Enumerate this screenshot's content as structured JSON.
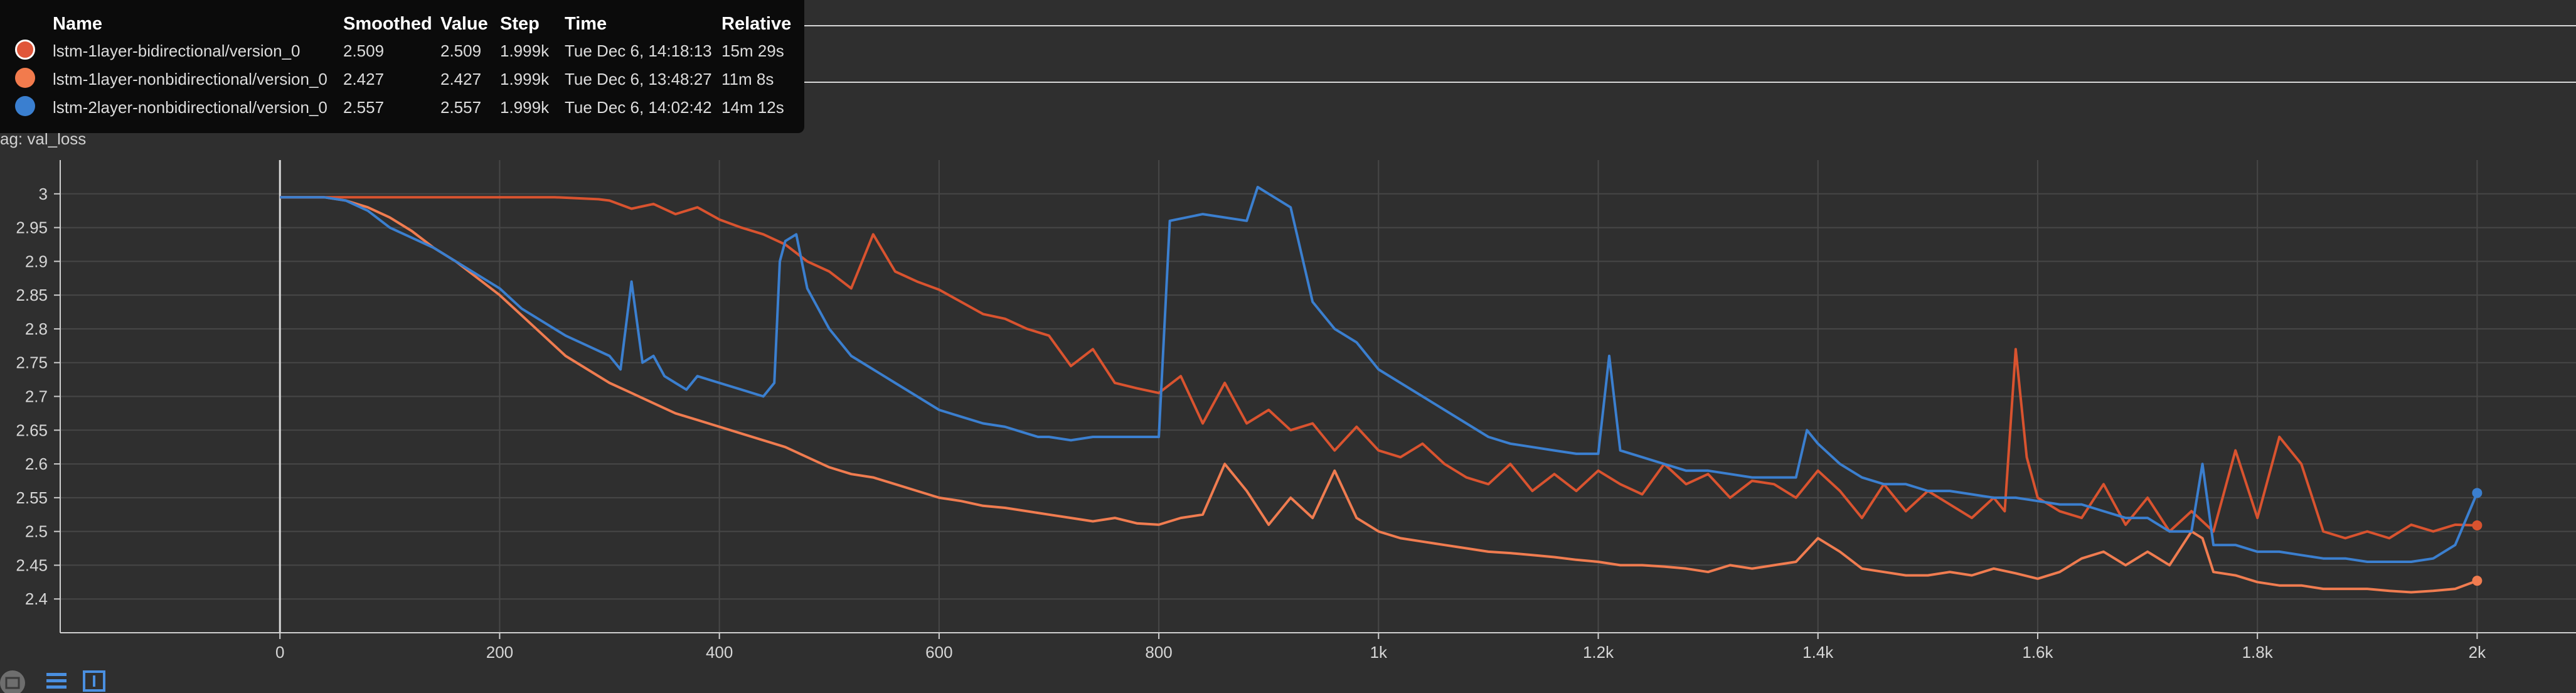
{
  "tag_label": "ag: val_loss",
  "partial_label": "val_loss",
  "tooltip": {
    "headers": {
      "name": "Name",
      "smoothed": "Smoothed",
      "value": "Value",
      "step": "Step",
      "time": "Time",
      "relative": "Relative"
    },
    "rows": [
      {
        "name": "lstm-1layer-bidirectional/version_0",
        "smoothed": "2.509",
        "value": "2.509",
        "step": "1.999k",
        "time": "Tue Dec 6, 14:18:13",
        "relative": "15m 29s",
        "color": "#e0563a",
        "selected": true
      },
      {
        "name": "lstm-1layer-nonbidirectional/version_0",
        "smoothed": "2.427",
        "value": "2.427",
        "step": "1.999k",
        "time": "Tue Dec 6, 13:48:27",
        "relative": "11m 8s",
        "color": "#f27b4d",
        "selected": false
      },
      {
        "name": "lstm-2layer-nonbidirectional/version_0",
        "smoothed": "2.557",
        "value": "2.557",
        "step": "1.999k",
        "time": "Tue Dec 6, 14:02:42",
        "relative": "14m 12s",
        "color": "#3a7fd0",
        "selected": false
      }
    ]
  },
  "chart_data": {
    "type": "line",
    "xlabel": "",
    "ylabel": "",
    "xlim": [
      -200,
      2090
    ],
    "ylim": [
      2.35,
      3.05
    ],
    "grid": true,
    "x_ticks": [
      0,
      200,
      400,
      600,
      800,
      1000,
      1200,
      1400,
      1600,
      1800,
      2000
    ],
    "x_tick_labels": [
      "0",
      "200",
      "400",
      "600",
      "800",
      "1k",
      "1.2k",
      "1.4k",
      "1.6k",
      "1.8k",
      "2k"
    ],
    "y_ticks": [
      2.4,
      2.45,
      2.5,
      2.55,
      2.6,
      2.65,
      2.7,
      2.75,
      2.8,
      2.85,
      2.9,
      2.95,
      3
    ],
    "y_tick_labels": [
      "2.4",
      "2.45",
      "2.5",
      "2.55",
      "2.6",
      "2.65",
      "2.7",
      "2.75",
      "2.8",
      "2.85",
      "2.9",
      "2.95",
      "3"
    ],
    "series": [
      {
        "name": "lstm-1layer-bidirectional/version_0",
        "color": "#d9532f",
        "x": [
          0,
          60,
          100,
          150,
          200,
          250,
          290,
          300,
          320,
          340,
          360,
          380,
          400,
          420,
          440,
          460,
          480,
          500,
          520,
          540,
          560,
          580,
          600,
          620,
          640,
          660,
          680,
          700,
          720,
          740,
          760,
          780,
          800,
          820,
          840,
          860,
          880,
          900,
          920,
          940,
          960,
          980,
          1000,
          1020,
          1040,
          1060,
          1080,
          1100,
          1120,
          1140,
          1160,
          1180,
          1200,
          1220,
          1240,
          1260,
          1280,
          1300,
          1320,
          1340,
          1360,
          1380,
          1400,
          1420,
          1440,
          1460,
          1480,
          1500,
          1520,
          1540,
          1560,
          1570,
          1580,
          1590,
          1600,
          1620,
          1640,
          1660,
          1680,
          1700,
          1720,
          1740,
          1760,
          1780,
          1800,
          1820,
          1840,
          1860,
          1880,
          1900,
          1920,
          1940,
          1960,
          1980,
          2000
        ],
        "y": [
          2.995,
          2.995,
          2.995,
          2.995,
          2.995,
          2.995,
          2.992,
          2.99,
          2.978,
          2.985,
          2.97,
          2.98,
          2.962,
          2.95,
          2.94,
          2.925,
          2.9,
          2.885,
          2.86,
          2.94,
          2.885,
          2.87,
          2.858,
          2.84,
          2.822,
          2.815,
          2.8,
          2.79,
          2.745,
          2.77,
          2.72,
          2.712,
          2.705,
          2.73,
          2.66,
          2.72,
          2.66,
          2.68,
          2.65,
          2.66,
          2.62,
          2.655,
          2.62,
          2.61,
          2.63,
          2.6,
          2.58,
          2.57,
          2.6,
          2.56,
          2.585,
          2.56,
          2.59,
          2.57,
          2.555,
          2.6,
          2.57,
          2.585,
          2.55,
          2.575,
          2.57,
          2.55,
          2.59,
          2.56,
          2.52,
          2.57,
          2.53,
          2.56,
          2.54,
          2.52,
          2.55,
          2.53,
          2.77,
          2.61,
          2.55,
          2.53,
          2.52,
          2.57,
          2.51,
          2.55,
          2.5,
          2.53,
          2.5,
          2.62,
          2.52,
          2.64,
          2.6,
          2.5,
          2.49,
          2.5,
          2.49,
          2.51,
          2.5,
          2.51,
          2.509
        ]
      },
      {
        "name": "lstm-1layer-nonbidirectional/version_0",
        "color": "#f07c50",
        "x": [
          0,
          40,
          60,
          80,
          100,
          120,
          140,
          160,
          180,
          200,
          220,
          240,
          260,
          280,
          300,
          320,
          340,
          360,
          380,
          400,
          420,
          440,
          460,
          480,
          500,
          520,
          540,
          560,
          580,
          600,
          620,
          640,
          660,
          680,
          700,
          720,
          740,
          760,
          780,
          800,
          820,
          840,
          860,
          880,
          900,
          920,
          940,
          960,
          980,
          1000,
          1020,
          1040,
          1060,
          1080,
          1100,
          1120,
          1140,
          1160,
          1180,
          1200,
          1220,
          1240,
          1260,
          1280,
          1300,
          1320,
          1340,
          1360,
          1380,
          1400,
          1420,
          1440,
          1460,
          1480,
          1500,
          1520,
          1540,
          1560,
          1580,
          1600,
          1620,
          1640,
          1660,
          1680,
          1700,
          1720,
          1740,
          1750,
          1760,
          1780,
          1800,
          1820,
          1840,
          1860,
          1880,
          1900,
          1920,
          1940,
          1960,
          1980,
          2000
        ],
        "y": [
          2.995,
          2.995,
          2.99,
          2.98,
          2.965,
          2.945,
          2.92,
          2.9,
          2.875,
          2.85,
          2.82,
          2.79,
          2.76,
          2.74,
          2.72,
          2.705,
          2.69,
          2.675,
          2.665,
          2.655,
          2.645,
          2.635,
          2.625,
          2.61,
          2.595,
          2.585,
          2.58,
          2.57,
          2.56,
          2.55,
          2.545,
          2.538,
          2.535,
          2.53,
          2.525,
          2.52,
          2.515,
          2.52,
          2.512,
          2.51,
          2.52,
          2.525,
          2.6,
          2.56,
          2.51,
          2.55,
          2.52,
          2.59,
          2.52,
          2.5,
          2.49,
          2.485,
          2.48,
          2.475,
          2.47,
          2.468,
          2.465,
          2.462,
          2.458,
          2.455,
          2.45,
          2.45,
          2.448,
          2.445,
          2.44,
          2.45,
          2.445,
          2.45,
          2.455,
          2.49,
          2.47,
          2.445,
          2.44,
          2.435,
          2.435,
          2.44,
          2.435,
          2.445,
          2.438,
          2.43,
          2.44,
          2.46,
          2.47,
          2.45,
          2.47,
          2.45,
          2.5,
          2.49,
          2.44,
          2.435,
          2.425,
          2.42,
          2.42,
          2.415,
          2.415,
          2.415,
          2.412,
          2.41,
          2.412,
          2.415,
          2.427
        ]
      },
      {
        "name": "lstm-2layer-nonbidirectional/version_0",
        "color": "#3b7fcf",
        "x": [
          0,
          40,
          60,
          80,
          100,
          120,
          140,
          160,
          180,
          200,
          220,
          240,
          260,
          280,
          300,
          310,
          320,
          330,
          340,
          350,
          360,
          370,
          380,
          400,
          420,
          440,
          450,
          455,
          460,
          470,
          480,
          500,
          520,
          540,
          560,
          580,
          600,
          620,
          640,
          660,
          680,
          690,
          700,
          720,
          740,
          780,
          800,
          810,
          840,
          880,
          890,
          900,
          920,
          940,
          960,
          980,
          1000,
          1020,
          1040,
          1060,
          1080,
          1100,
          1120,
          1140,
          1160,
          1180,
          1200,
          1210,
          1220,
          1240,
          1260,
          1280,
          1300,
          1320,
          1340,
          1360,
          1380,
          1390,
          1400,
          1420,
          1440,
          1460,
          1480,
          1500,
          1520,
          1540,
          1560,
          1580,
          1600,
          1620,
          1640,
          1660,
          1680,
          1700,
          1720,
          1740,
          1750,
          1760,
          1780,
          1800,
          1820,
          1840,
          1860,
          1880,
          1900,
          1920,
          1940,
          1960,
          1980,
          2000
        ],
        "y": [
          2.995,
          2.995,
          2.99,
          2.975,
          2.95,
          2.935,
          2.92,
          2.9,
          2.88,
          2.86,
          2.83,
          2.81,
          2.79,
          2.775,
          2.76,
          2.74,
          2.87,
          2.75,
          2.76,
          2.73,
          2.72,
          2.71,
          2.73,
          2.72,
          2.71,
          2.7,
          2.72,
          2.9,
          2.93,
          2.94,
          2.86,
          2.8,
          2.76,
          2.74,
          2.72,
          2.7,
          2.68,
          2.67,
          2.66,
          2.655,
          2.645,
          2.64,
          2.64,
          2.635,
          2.64,
          2.64,
          2.64,
          2.96,
          2.97,
          2.96,
          3.01,
          3.0,
          2.98,
          2.84,
          2.8,
          2.78,
          2.74,
          2.72,
          2.7,
          2.68,
          2.66,
          2.64,
          2.63,
          2.625,
          2.62,
          2.615,
          2.615,
          2.76,
          2.62,
          2.61,
          2.6,
          2.59,
          2.59,
          2.585,
          2.58,
          2.58,
          2.58,
          2.65,
          2.63,
          2.6,
          2.58,
          2.57,
          2.57,
          2.56,
          2.56,
          2.555,
          2.55,
          2.55,
          2.545,
          2.54,
          2.54,
          2.53,
          2.52,
          2.52,
          2.5,
          2.5,
          2.6,
          2.48,
          2.48,
          2.47,
          2.47,
          2.465,
          2.46,
          2.46,
          2.455,
          2.455,
          2.455,
          2.46,
          2.48,
          2.557
        ]
      }
    ]
  }
}
